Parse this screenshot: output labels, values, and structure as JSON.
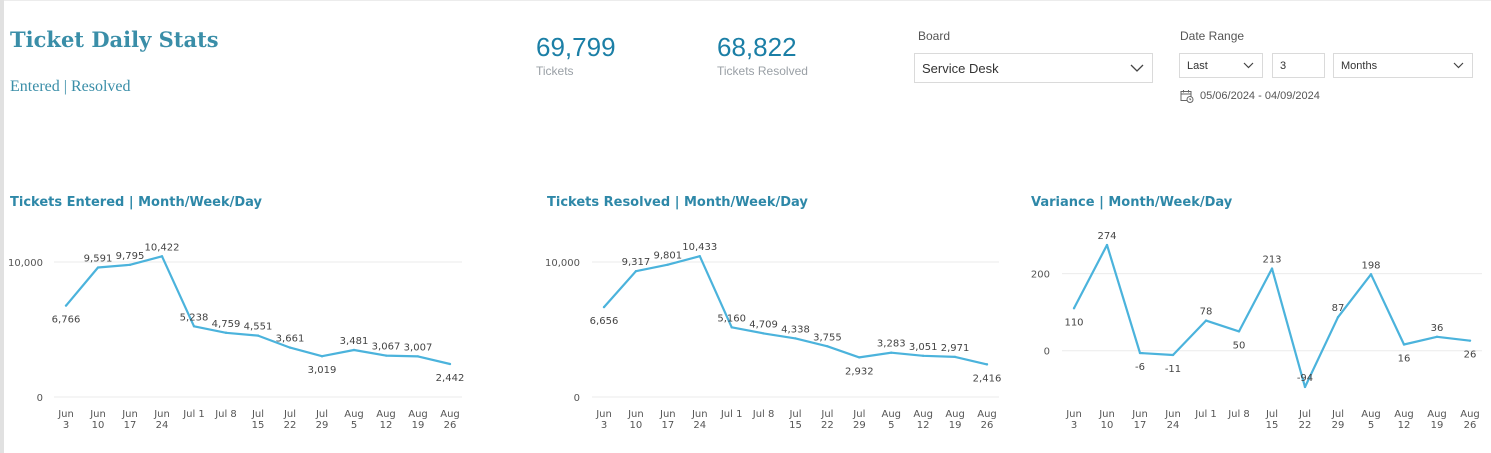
{
  "header": {
    "title": "Ticket Daily Stats",
    "subtitle": "Entered | Resolved"
  },
  "kpis": [
    {
      "value": "69,799",
      "label": "Tickets"
    },
    {
      "value": "68,822",
      "label": "Tickets Resolved"
    }
  ],
  "filters": {
    "board_label": "Board",
    "board_value": "Service Desk",
    "date_range_label": "Date Range",
    "period_value": "Last",
    "count_value": "3",
    "unit_value": "Months",
    "date_range_text": "05/06/2024 - 04/09/2024"
  },
  "colors": {
    "line": "#4bb3dc",
    "title": "#2e88a8",
    "kpi": "#1b7fa6"
  },
  "chart_data": [
    {
      "type": "line",
      "title": "Tickets Entered | Month/Week/Day",
      "categories": [
        "Jun 3",
        "Jun 10",
        "Jun 17",
        "Jun 24",
        "Jul 1",
        "Jul 8",
        "Jul 15",
        "Jul 22",
        "Jul 29",
        "Aug 5",
        "Aug 12",
        "Aug 19",
        "Aug 26"
      ],
      "tick_labels": [
        [
          "Jun",
          "3"
        ],
        [
          "Jun",
          "10"
        ],
        [
          "Jun",
          "17"
        ],
        [
          "Jun",
          "24"
        ],
        [
          "Jul 1"
        ],
        [
          "Jul 8"
        ],
        [
          "Jul",
          "15"
        ],
        [
          "Jul",
          "22"
        ],
        [
          "Jul",
          "29"
        ],
        [
          "Aug",
          "5"
        ],
        [
          "Aug",
          "12"
        ],
        [
          "Aug",
          "19"
        ],
        [
          "Aug",
          "26"
        ]
      ],
      "values": [
        6766,
        9591,
        9795,
        10422,
        5238,
        4759,
        4551,
        3661,
        3019,
        3481,
        3067,
        3007,
        2442
      ],
      "data_labels": [
        "6,766",
        "9,591",
        "9,795",
        "10,422",
        "5,238",
        "4,759",
        "4,551",
        "3,661",
        "3,019",
        "3,481",
        "3,067",
        "3,007",
        "2,442"
      ],
      "label_positions": [
        "below",
        "above",
        "above",
        "above",
        "above",
        "above",
        "above",
        "above",
        "below",
        "above",
        "above",
        "above",
        "below"
      ],
      "yticks": [
        0,
        10000
      ],
      "ytick_labels": [
        "0",
        "10,000"
      ],
      "ylim": [
        0,
        12000
      ],
      "grid": true,
      "legend": "none"
    },
    {
      "type": "line",
      "title": "Tickets Resolved | Month/Week/Day",
      "categories": [
        "Jun 3",
        "Jun 10",
        "Jun 17",
        "Jun 24",
        "Jul 1",
        "Jul 8",
        "Jul 15",
        "Jul 22",
        "Jul 29",
        "Aug 5",
        "Aug 12",
        "Aug 19",
        "Aug 26"
      ],
      "tick_labels": [
        [
          "Jun",
          "3"
        ],
        [
          "Jun",
          "10"
        ],
        [
          "Jun",
          "17"
        ],
        [
          "Jun",
          "24"
        ],
        [
          "Jul 1"
        ],
        [
          "Jul 8"
        ],
        [
          "Jul",
          "15"
        ],
        [
          "Jul",
          "22"
        ],
        [
          "Jul",
          "29"
        ],
        [
          "Aug",
          "5"
        ],
        [
          "Aug",
          "12"
        ],
        [
          "Aug",
          "19"
        ],
        [
          "Aug",
          "26"
        ]
      ],
      "values": [
        6656,
        9317,
        9801,
        10433,
        5160,
        4709,
        4338,
        3755,
        2932,
        3283,
        3051,
        2971,
        2416
      ],
      "data_labels": [
        "6,656",
        "9,317",
        "9,801",
        "10,433",
        "5,160",
        "4,709",
        "4,338",
        "3,755",
        "2,932",
        "3,283",
        "3,051",
        "2,971",
        "2,416"
      ],
      "label_positions": [
        "below",
        "above",
        "above",
        "above",
        "above",
        "above",
        "above",
        "above",
        "below",
        "above",
        "above",
        "above",
        "below"
      ],
      "yticks": [
        0,
        10000
      ],
      "ytick_labels": [
        "0",
        "10,000"
      ],
      "ylim": [
        0,
        12000
      ],
      "grid": true,
      "legend": "none"
    },
    {
      "type": "line",
      "title": "Variance | Month/Week/Day",
      "categories": [
        "Jun 3",
        "Jun 10",
        "Jun 17",
        "Jun 24",
        "Jul 1",
        "Jul 8",
        "Jul 15",
        "Jul 22",
        "Jul 29",
        "Aug 5",
        "Aug 12",
        "Aug 19",
        "Aug 26"
      ],
      "tick_labels": [
        [
          "Jun",
          "3"
        ],
        [
          "Jun",
          "10"
        ],
        [
          "Jun",
          "17"
        ],
        [
          "Jun",
          "24"
        ],
        [
          "Jul 1"
        ],
        [
          "Jul 8"
        ],
        [
          "Jul",
          "15"
        ],
        [
          "Jul",
          "22"
        ],
        [
          "Jul",
          "29"
        ],
        [
          "Aug",
          "5"
        ],
        [
          "Aug",
          "12"
        ],
        [
          "Aug",
          "19"
        ],
        [
          "Aug",
          "26"
        ]
      ],
      "values": [
        110,
        274,
        -6,
        -11,
        78,
        50,
        213,
        -94,
        87,
        198,
        16,
        36,
        26
      ],
      "data_labels": [
        "110",
        "274",
        "-6",
        "-11",
        "78",
        "50",
        "213",
        "-94",
        "87",
        "198",
        "16",
        "36",
        "26"
      ],
      "label_positions": [
        "below",
        "above",
        "below",
        "below",
        "above",
        "below",
        "above",
        "above",
        "above",
        "above",
        "below",
        "above",
        "below"
      ],
      "yticks": [
        0,
        200
      ],
      "ytick_labels": [
        "0",
        "200"
      ],
      "ylim": [
        -120,
        300
      ],
      "grid": true,
      "legend": "none"
    }
  ]
}
